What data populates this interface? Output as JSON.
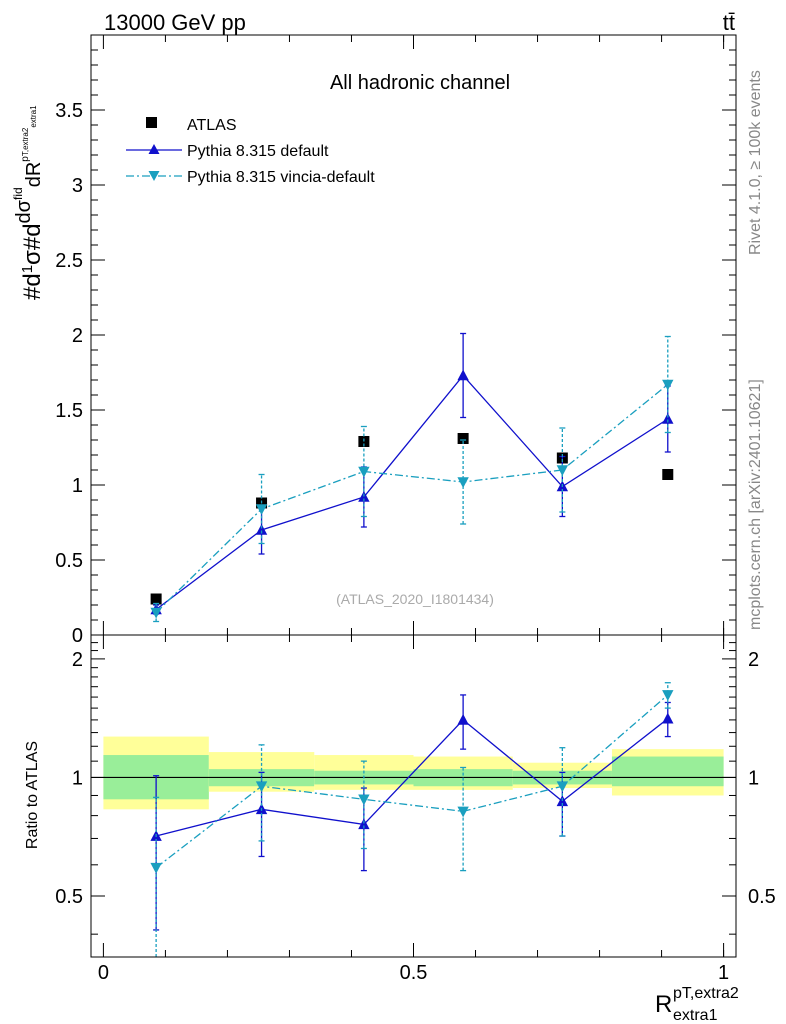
{
  "header": {
    "energy_label": "13000 GeV pp",
    "process_label": "tt̄"
  },
  "side_labels": {
    "rivet": "Rivet 4.1.0, ≥ 100k events",
    "source": "mcplots.cern.ch [arXiv:2401.10621]"
  },
  "chart_data": {
    "type": "scatter",
    "title": "All hadronic channel",
    "analysis_label": "(ATLAS_2020_I1801434)",
    "ylabel_text": "#d¹⁄σ #d dσfid/d pᵀ,extra2 dR extra1",
    "xlabel": "R",
    "xlabel_sup": "pT,extra2",
    "xlabel_sub": "extra1",
    "ratio_ylabel": "Ratio to ATLAS",
    "xlim": [
      -0.02,
      1.02
    ],
    "ylim": [
      0,
      4.0
    ],
    "ratio_ylim": [
      0.35,
      2.3
    ],
    "x_ticks": [
      "0",
      "0.5",
      "1"
    ],
    "x_tick_values": [
      0,
      0.5,
      1
    ],
    "y_ticks": [
      "0",
      "0.5",
      "1",
      "1.5",
      "2",
      "2.5",
      "3",
      "3.5"
    ],
    "y_tick_values": [
      0,
      0.5,
      1,
      1.5,
      2,
      2.5,
      3,
      3.5
    ],
    "ratio_y_ticks": [
      "0.5",
      "1",
      "2"
    ],
    "ratio_y_tick_values": [
      0.5,
      1,
      2
    ],
    "bins": [
      {
        "lo": 0.0,
        "hi": 0.17,
        "x": 0.085
      },
      {
        "lo": 0.17,
        "hi": 0.34,
        "x": 0.255
      },
      {
        "lo": 0.34,
        "hi": 0.5,
        "x": 0.42
      },
      {
        "lo": 0.5,
        "hi": 0.66,
        "x": 0.58
      },
      {
        "lo": 0.66,
        "hi": 0.82,
        "x": 0.74
      },
      {
        "lo": 0.82,
        "hi": 1.0,
        "x": 0.91
      }
    ],
    "data": {
      "name": "ATLAS",
      "values": [
        0.24,
        0.88,
        1.29,
        1.31,
        1.18,
        1.07
      ],
      "band_inner": [
        [
          0.88,
          1.14
        ],
        [
          0.95,
          1.05
        ],
        [
          0.96,
          1.04
        ],
        [
          0.95,
          1.05
        ],
        [
          0.96,
          1.04
        ],
        [
          0.95,
          1.13
        ]
      ],
      "band_outer": [
        [
          0.83,
          1.27
        ],
        [
          0.92,
          1.16
        ],
        [
          0.93,
          1.14
        ],
        [
          0.93,
          1.13
        ],
        [
          0.94,
          1.09
        ],
        [
          0.9,
          1.18
        ]
      ]
    },
    "series": [
      {
        "name": "Pythia 8.315 default",
        "color": "#1010cc",
        "marker": "triangle-up",
        "dash": "",
        "x": [
          0.085,
          0.255,
          0.42,
          0.58,
          0.74,
          0.91
        ],
        "values": [
          0.17,
          0.7,
          0.92,
          1.73,
          0.99,
          1.44
        ],
        "errors": [
          0.03,
          0.16,
          0.2,
          0.28,
          0.2,
          0.22
        ],
        "ratio": [
          0.71,
          0.83,
          0.76,
          1.4,
          0.87,
          1.41
        ],
        "ratio_errors": [
          0.3,
          0.2,
          0.18,
          0.22,
          0.16,
          0.14
        ]
      },
      {
        "name": "Pythia 8.315 vincia-default",
        "color": "#1a9fbf",
        "marker": "triangle-down",
        "dash": "8,3,2,3",
        "x": [
          0.085,
          0.255,
          0.42,
          0.58,
          0.74,
          0.91
        ],
        "values": [
          0.15,
          0.84,
          1.09,
          1.02,
          1.1,
          1.67
        ],
        "errors": [
          0.06,
          0.23,
          0.3,
          0.28,
          0.28,
          0.32
        ],
        "ratio": [
          0.59,
          0.95,
          0.88,
          0.82,
          0.95,
          1.62
        ],
        "ratio_errors": [
          0.3,
          0.26,
          0.22,
          0.24,
          0.24,
          0.12
        ]
      }
    ]
  }
}
